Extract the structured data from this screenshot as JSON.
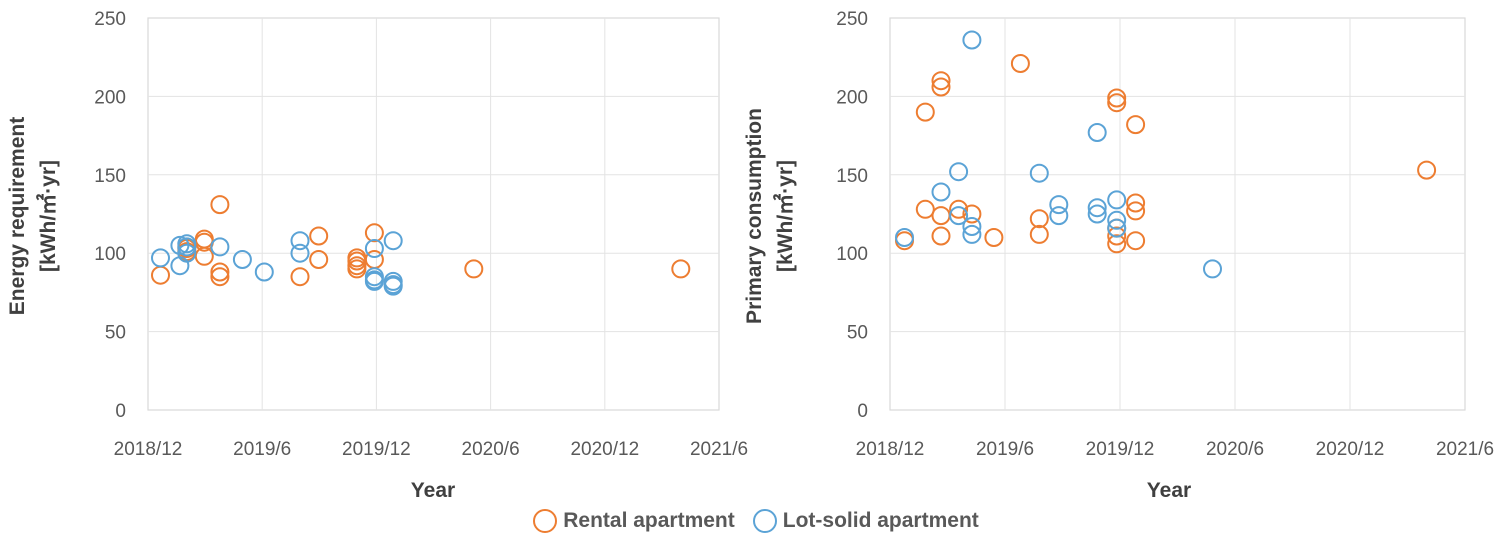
{
  "colors": {
    "rental": "#ED7D31",
    "lot_solid": "#5BA3D6",
    "text": "#595959",
    "grid": "#E3E3E3"
  },
  "legend": {
    "rental_label": "Rental apartment",
    "lot_solid_label": "Lot-solid apartment"
  },
  "chart_data": [
    {
      "type": "scatter",
      "xlabel": "Year",
      "ylabel_line1": "Energy requirement",
      "ylabel_line2": "[kWh/㎡·yr]",
      "x_ticks": [
        "2018/12",
        "2019/6",
        "2019/12",
        "2020/6",
        "2020/12",
        "2021/6"
      ],
      "y_ticks": [
        "0",
        "50",
        "100",
        "150",
        "200",
        "250"
      ],
      "xlim": [
        "2018-12-01",
        "2021-06-01"
      ],
      "ylim": [
        0,
        250
      ],
      "grid": "vertical and horizontal",
      "series": [
        {
          "name": "Rental apartment",
          "color_key": "rental",
          "points": [
            [
              "2018-12-21",
              86
            ],
            [
              "2019-02-01",
              103
            ],
            [
              "2019-02-01",
              101
            ],
            [
              "2019-03-01",
              109
            ],
            [
              "2019-03-01",
              107
            ],
            [
              "2019-03-01",
              98
            ],
            [
              "2019-03-26",
              131
            ],
            [
              "2019-03-26",
              88
            ],
            [
              "2019-03-26",
              85
            ],
            [
              "2019-08-01",
              85
            ],
            [
              "2019-08-31",
              111
            ],
            [
              "2019-08-31",
              96
            ],
            [
              "2019-10-31",
              97
            ],
            [
              "2019-10-31",
              95
            ],
            [
              "2019-10-31",
              92
            ],
            [
              "2019-10-31",
              90
            ],
            [
              "2019-11-28",
              113
            ],
            [
              "2019-11-28",
              96
            ],
            [
              "2020-05-05",
              90
            ],
            [
              "2021-04-01",
              90
            ]
          ]
        },
        {
          "name": "Lot-solid apartment",
          "color_key": "lot_solid",
          "points": [
            [
              "2018-12-21",
              97
            ],
            [
              "2019-01-21",
              105
            ],
            [
              "2019-01-21",
              92
            ],
            [
              "2019-02-01",
              106
            ],
            [
              "2019-02-01",
              104
            ],
            [
              "2019-02-01",
              100
            ],
            [
              "2019-03-26",
              104
            ],
            [
              "2019-05-01",
              96
            ],
            [
              "2019-06-05",
              88
            ],
            [
              "2019-08-01",
              108
            ],
            [
              "2019-08-01",
              100
            ],
            [
              "2019-11-28",
              103
            ],
            [
              "2019-11-28",
              85
            ],
            [
              "2019-11-28",
              83
            ],
            [
              "2019-11-28",
              82
            ],
            [
              "2019-12-28",
              108
            ],
            [
              "2019-12-28",
              82
            ],
            [
              "2019-12-28",
              80
            ],
            [
              "2019-12-28",
              79
            ]
          ]
        }
      ]
    },
    {
      "type": "scatter",
      "xlabel": "Year",
      "ylabel_line1": "Primary consumption",
      "ylabel_line2": "[kWh/㎡·yr]",
      "x_ticks": [
        "2018/12",
        "2019/6",
        "2019/12",
        "2020/6",
        "2020/12",
        "2021/6"
      ],
      "y_ticks": [
        "0",
        "50",
        "100",
        "150",
        "200",
        "250"
      ],
      "xlim": [
        "2018-12-01",
        "2021-06-01"
      ],
      "ylim": [
        0,
        250
      ],
      "grid": "vertical and horizontal",
      "series": [
        {
          "name": "Rental apartment",
          "color_key": "rental",
          "points": [
            [
              "2018-12-24",
              108
            ],
            [
              "2019-01-26",
              128
            ],
            [
              "2019-01-26",
              190
            ],
            [
              "2019-02-20",
              210
            ],
            [
              "2019-02-20",
              206
            ],
            [
              "2019-02-20",
              124
            ],
            [
              "2019-02-20",
              111
            ],
            [
              "2019-03-20",
              128
            ],
            [
              "2019-04-10",
              125
            ],
            [
              "2019-05-15",
              110
            ],
            [
              "2019-06-26",
              221
            ],
            [
              "2019-07-26",
              122
            ],
            [
              "2019-07-26",
              112
            ],
            [
              "2019-11-26",
              199
            ],
            [
              "2019-11-26",
              196
            ],
            [
              "2019-11-26",
              116
            ],
            [
              "2019-11-26",
              111
            ],
            [
              "2019-11-26",
              106
            ],
            [
              "2019-12-26",
              182
            ],
            [
              "2019-12-26",
              132
            ],
            [
              "2019-12-26",
              127
            ],
            [
              "2019-12-26",
              108
            ],
            [
              "2021-04-01",
              153
            ]
          ]
        },
        {
          "name": "Lot-solid apartment",
          "color_key": "lot_solid",
          "points": [
            [
              "2018-12-24",
              110
            ],
            [
              "2019-02-20",
              139
            ],
            [
              "2019-03-20",
              152
            ],
            [
              "2019-03-20",
              124
            ],
            [
              "2019-04-10",
              236
            ],
            [
              "2019-04-10",
              117
            ],
            [
              "2019-04-10",
              112
            ],
            [
              "2019-07-26",
              151
            ],
            [
              "2019-08-26",
              131
            ],
            [
              "2019-08-26",
              124
            ],
            [
              "2019-10-26",
              177
            ],
            [
              "2019-10-26",
              129
            ],
            [
              "2019-10-26",
              125
            ],
            [
              "2019-11-26",
              134
            ],
            [
              "2019-11-26",
              121
            ],
            [
              "2019-11-26",
              116
            ],
            [
              "2020-04-26",
              90
            ]
          ]
        }
      ]
    }
  ]
}
